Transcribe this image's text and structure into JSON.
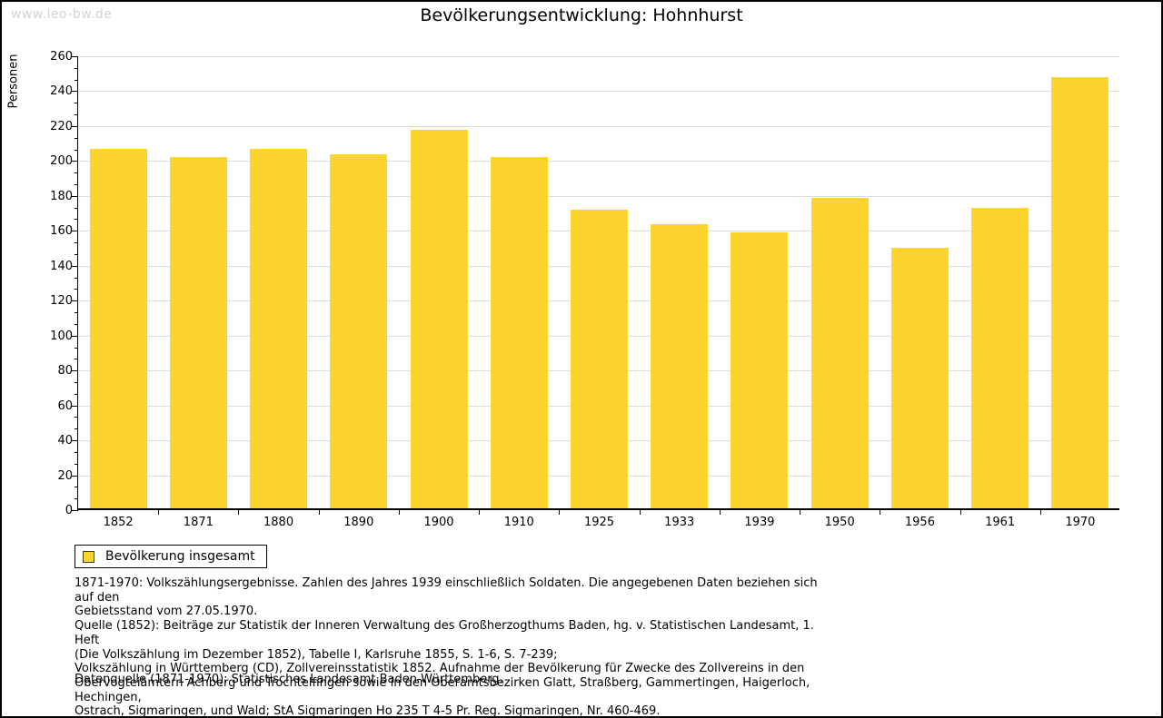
{
  "watermark": "www.leo-bw.de",
  "header": {
    "title": "Bevölkerungsentwicklung: Hohnhurst"
  },
  "chart_data": {
    "type": "bar",
    "title": "Bevölkerungsentwicklung: Hohnhurst",
    "xlabel": "",
    "ylabel": "Personen",
    "categories": [
      "1852",
      "1871",
      "1880",
      "1890",
      "1900",
      "1910",
      "1925",
      "1933",
      "1939",
      "1950",
      "1956",
      "1961",
      "1970"
    ],
    "series": [
      {
        "name": "Bevölkerung insgesamt",
        "values": [
          206,
          201,
          206,
          203,
          217,
          201,
          171,
          163,
          158,
          178,
          149,
          172,
          247
        ]
      }
    ],
    "ylim": [
      0,
      260
    ],
    "ytick_step": 20,
    "minor_ticks_between_major": 2,
    "grid": true,
    "legend_position": "bottom-left",
    "bar_color": "#fcd42d",
    "gridline_color": "#dcdcdc",
    "axis_color": "#000000"
  },
  "legend": {
    "label": "Bevölkerung insgesamt",
    "swatch_color": "#fcd42d"
  },
  "notes": {
    "lines": [
      "1871-1970: Volkszählungsergebnisse. Zahlen des Jahres 1939 einschließlich Soldaten. Die angegebenen Daten beziehen sich auf den",
      "Gebietsstand vom 27.05.1970.",
      "Quelle (1852): Beiträge zur Statistik der Inneren Verwaltung des Großherzogthums Baden, hg. v. Statistischen Landesamt, 1. Heft",
      "(Die Volkszählung im Dezember 1852), Tabelle I, Karlsruhe 1855, S. 1-6, S. 7-239;",
      "Volkszählung in Württemberg (CD), Zollvereinsstatistik 1852. Aufnahme der Bevölkerung für Zwecke des Zollvereins in den",
      "Obervogteiämtern Achberg und Trochtelfingen sowie in den Oberamtsbezirken Glatt, Straßberg, Gammertingen, Haigerloch, Hechingen,",
      "Ostrach, Sigmaringen, und Wald; StA Sigmaringen Ho 235 T 4-5 Pr. Reg. Sigmaringen, Nr. 460-469."
    ]
  },
  "datasource": "Datenquelle (1871-1970): Statistisches Landesamt Baden-Württemberg."
}
